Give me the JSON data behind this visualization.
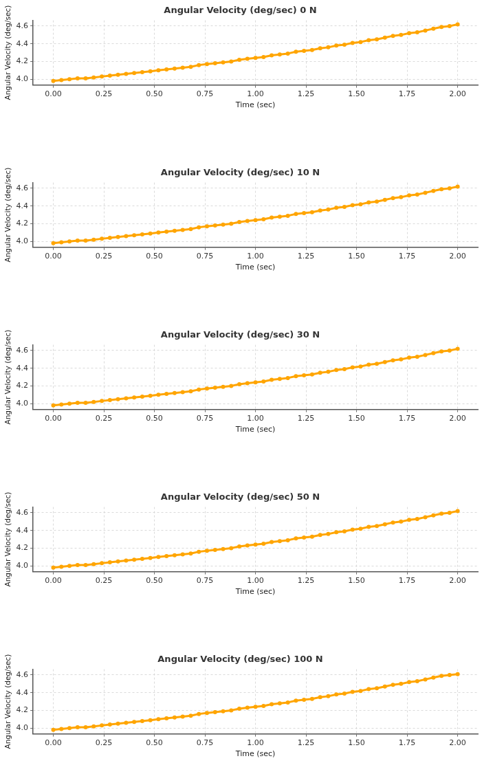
{
  "chart_data": [
    {
      "type": "line",
      "title": "Angular Velocity (deg/sec) 0 N",
      "xlabel": "Time (sec)",
      "ylabel": "Angular Velocity (deg/sec)",
      "x": [
        0,
        0.04,
        0.08,
        0.12,
        0.16,
        0.2,
        0.24,
        0.28,
        0.32,
        0.36,
        0.4,
        0.44,
        0.48,
        0.52,
        0.56,
        0.6,
        0.64,
        0.68,
        0.72,
        0.76,
        0.8,
        0.84,
        0.88,
        0.92,
        0.96,
        1,
        1.04,
        1.08,
        1.12,
        1.16,
        1.2,
        1.24,
        1.28,
        1.32,
        1.36,
        1.4,
        1.44,
        1.48,
        1.52,
        1.56,
        1.6,
        1.64,
        1.68,
        1.72,
        1.76,
        1.8,
        1.84,
        1.88,
        1.92,
        1.96,
        2
      ],
      "series": [
        {
          "color": "#ffa500",
          "values": [
            3.98,
            3.99,
            4.0,
            4.01,
            4.01,
            4.02,
            4.03,
            4.04,
            4.05,
            4.06,
            4.07,
            4.08,
            4.09,
            4.1,
            4.11,
            4.12,
            4.13,
            4.14,
            4.16,
            4.17,
            4.18,
            4.19,
            4.2,
            4.22,
            4.23,
            4.24,
            4.25,
            4.27,
            4.28,
            4.29,
            4.31,
            4.32,
            4.33,
            4.35,
            4.36,
            4.38,
            4.39,
            4.41,
            4.42,
            4.44,
            4.45,
            4.47,
            4.49,
            4.5,
            4.52,
            4.53,
            4.55,
            4.57,
            4.59,
            4.6,
            4.62
          ]
        }
      ],
      "xlim": [
        -0.1,
        2.1
      ],
      "xticks": [
        {
          "value": 0,
          "label": "0.00"
        },
        {
          "value": 0.25,
          "label": "0.25"
        },
        {
          "value": 0.5,
          "label": "0.50"
        },
        {
          "value": 0.75,
          "label": "0.75"
        },
        {
          "value": 1,
          "label": "1.00"
        },
        {
          "value": 1.25,
          "label": "1.25"
        },
        {
          "value": 1.5,
          "label": "1.50"
        },
        {
          "value": 1.75,
          "label": "1.75"
        },
        {
          "value": 2,
          "label": "2.00"
        }
      ],
      "ylim": [
        3.935,
        4.665
      ],
      "yticks": [
        {
          "value": 4,
          "label": "4.0"
        },
        {
          "value": 4.2,
          "label": "4.2"
        },
        {
          "value": 4.4,
          "label": "4.4"
        },
        {
          "value": 4.6,
          "label": "4.6"
        }
      ],
      "grid": true,
      "marker": "circle",
      "line_style": "solid"
    },
    {
      "type": "line",
      "title": "Angular Velocity (deg/sec) 10 N",
      "xlabel": "Time (sec)",
      "ylabel": "Angular Velocity (deg/sec)",
      "x": [
        0,
        0.04,
        0.08,
        0.12,
        0.16,
        0.2,
        0.24,
        0.28,
        0.32,
        0.36,
        0.4,
        0.44,
        0.48,
        0.52,
        0.56,
        0.6,
        0.64,
        0.68,
        0.72,
        0.76,
        0.8,
        0.84,
        0.88,
        0.92,
        0.96,
        1,
        1.04,
        1.08,
        1.12,
        1.16,
        1.2,
        1.24,
        1.28,
        1.32,
        1.36,
        1.4,
        1.44,
        1.48,
        1.52,
        1.56,
        1.6,
        1.64,
        1.68,
        1.72,
        1.76,
        1.8,
        1.84,
        1.88,
        1.92,
        1.96,
        2
      ],
      "series": [
        {
          "color": "#ffa500",
          "values": [
            3.98,
            3.99,
            4.0,
            4.01,
            4.01,
            4.02,
            4.03,
            4.04,
            4.05,
            4.06,
            4.07,
            4.08,
            4.09,
            4.1,
            4.11,
            4.12,
            4.13,
            4.14,
            4.16,
            4.17,
            4.18,
            4.19,
            4.2,
            4.22,
            4.23,
            4.24,
            4.25,
            4.27,
            4.28,
            4.29,
            4.31,
            4.32,
            4.33,
            4.35,
            4.36,
            4.38,
            4.39,
            4.41,
            4.42,
            4.44,
            4.45,
            4.47,
            4.49,
            4.5,
            4.52,
            4.53,
            4.55,
            4.57,
            4.59,
            4.6,
            4.62
          ]
        }
      ],
      "xlim": [
        -0.1,
        2.1
      ],
      "xticks": [
        {
          "value": 0,
          "label": "0.00"
        },
        {
          "value": 0.25,
          "label": "0.25"
        },
        {
          "value": 0.5,
          "label": "0.50"
        },
        {
          "value": 0.75,
          "label": "0.75"
        },
        {
          "value": 1,
          "label": "1.00"
        },
        {
          "value": 1.25,
          "label": "1.25"
        },
        {
          "value": 1.5,
          "label": "1.50"
        },
        {
          "value": 1.75,
          "label": "1.75"
        },
        {
          "value": 2,
          "label": "2.00"
        }
      ],
      "ylim": [
        3.935,
        4.665
      ],
      "yticks": [
        {
          "value": 4,
          "label": "4.0"
        },
        {
          "value": 4.2,
          "label": "4.2"
        },
        {
          "value": 4.4,
          "label": "4.4"
        },
        {
          "value": 4.6,
          "label": "4.6"
        }
      ],
      "grid": true,
      "marker": "circle",
      "line_style": "solid"
    },
    {
      "type": "line",
      "title": "Angular Velocity (deg/sec) 30 N",
      "xlabel": "Time (sec)",
      "ylabel": "Angular Velocity (deg/sec)",
      "x": [
        0,
        0.04,
        0.08,
        0.12,
        0.16,
        0.2,
        0.24,
        0.28,
        0.32,
        0.36,
        0.4,
        0.44,
        0.48,
        0.52,
        0.56,
        0.6,
        0.64,
        0.68,
        0.72,
        0.76,
        0.8,
        0.84,
        0.88,
        0.92,
        0.96,
        1,
        1.04,
        1.08,
        1.12,
        1.16,
        1.2,
        1.24,
        1.28,
        1.32,
        1.36,
        1.4,
        1.44,
        1.48,
        1.52,
        1.56,
        1.6,
        1.64,
        1.68,
        1.72,
        1.76,
        1.8,
        1.84,
        1.88,
        1.92,
        1.96,
        2
      ],
      "series": [
        {
          "color": "#ffa500",
          "values": [
            3.98,
            3.99,
            4.0,
            4.01,
            4.01,
            4.02,
            4.03,
            4.04,
            4.05,
            4.06,
            4.07,
            4.08,
            4.09,
            4.1,
            4.11,
            4.12,
            4.13,
            4.14,
            4.16,
            4.17,
            4.18,
            4.19,
            4.2,
            4.22,
            4.23,
            4.24,
            4.25,
            4.27,
            4.28,
            4.29,
            4.31,
            4.32,
            4.33,
            4.35,
            4.36,
            4.38,
            4.39,
            4.41,
            4.42,
            4.44,
            4.45,
            4.47,
            4.49,
            4.5,
            4.52,
            4.53,
            4.55,
            4.57,
            4.59,
            4.6,
            4.62
          ]
        }
      ],
      "xlim": [
        -0.1,
        2.1
      ],
      "xticks": [
        {
          "value": 0,
          "label": "0.00"
        },
        {
          "value": 0.25,
          "label": "0.25"
        },
        {
          "value": 0.5,
          "label": "0.50"
        },
        {
          "value": 0.75,
          "label": "0.75"
        },
        {
          "value": 1,
          "label": "1.00"
        },
        {
          "value": 1.25,
          "label": "1.25"
        },
        {
          "value": 1.5,
          "label": "1.50"
        },
        {
          "value": 1.75,
          "label": "1.75"
        },
        {
          "value": 2,
          "label": "2.00"
        }
      ],
      "ylim": [
        3.935,
        4.665
      ],
      "yticks": [
        {
          "value": 4,
          "label": "4.0"
        },
        {
          "value": 4.2,
          "label": "4.2"
        },
        {
          "value": 4.4,
          "label": "4.4"
        },
        {
          "value": 4.6,
          "label": "4.6"
        }
      ],
      "grid": true,
      "marker": "circle",
      "line_style": "solid"
    },
    {
      "type": "line",
      "title": "Angular Velocity (deg/sec) 50 N",
      "xlabel": "Time (sec)",
      "ylabel": "Angular Velocity (deg/sec)",
      "x": [
        0,
        0.04,
        0.08,
        0.12,
        0.16,
        0.2,
        0.24,
        0.28,
        0.32,
        0.36,
        0.4,
        0.44,
        0.48,
        0.52,
        0.56,
        0.6,
        0.64,
        0.68,
        0.72,
        0.76,
        0.8,
        0.84,
        0.88,
        0.92,
        0.96,
        1,
        1.04,
        1.08,
        1.12,
        1.16,
        1.2,
        1.24,
        1.28,
        1.32,
        1.36,
        1.4,
        1.44,
        1.48,
        1.52,
        1.56,
        1.6,
        1.64,
        1.68,
        1.72,
        1.76,
        1.8,
        1.84,
        1.88,
        1.92,
        1.96,
        2
      ],
      "series": [
        {
          "color": "#ffa500",
          "values": [
            3.98,
            3.99,
            4.0,
            4.01,
            4.01,
            4.02,
            4.03,
            4.04,
            4.05,
            4.06,
            4.07,
            4.08,
            4.09,
            4.1,
            4.11,
            4.12,
            4.13,
            4.14,
            4.16,
            4.17,
            4.18,
            4.19,
            4.2,
            4.22,
            4.23,
            4.24,
            4.25,
            4.27,
            4.28,
            4.29,
            4.31,
            4.32,
            4.33,
            4.35,
            4.36,
            4.38,
            4.39,
            4.41,
            4.42,
            4.44,
            4.45,
            4.47,
            4.49,
            4.5,
            4.52,
            4.53,
            4.55,
            4.57,
            4.59,
            4.6,
            4.62
          ]
        }
      ],
      "xlim": [
        -0.1,
        2.1
      ],
      "xticks": [
        {
          "value": 0,
          "label": "0.00"
        },
        {
          "value": 0.25,
          "label": "0.25"
        },
        {
          "value": 0.5,
          "label": "0.50"
        },
        {
          "value": 0.75,
          "label": "0.75"
        },
        {
          "value": 1,
          "label": "1.00"
        },
        {
          "value": 1.25,
          "label": "1.25"
        },
        {
          "value": 1.5,
          "label": "1.50"
        },
        {
          "value": 1.75,
          "label": "1.75"
        },
        {
          "value": 2,
          "label": "2.00"
        }
      ],
      "ylim": [
        3.935,
        4.665
      ],
      "yticks": [
        {
          "value": 4,
          "label": "4.0"
        },
        {
          "value": 4.2,
          "label": "4.2"
        },
        {
          "value": 4.4,
          "label": "4.4"
        },
        {
          "value": 4.6,
          "label": "4.6"
        }
      ],
      "grid": true,
      "marker": "circle",
      "line_style": "solid"
    },
    {
      "type": "line",
      "title": "Angular Velocity (deg/sec) 100 N",
      "xlabel": "Time (sec)",
      "ylabel": "Angular Velocity (deg/sec)",
      "x": [
        0,
        0.04,
        0.08,
        0.12,
        0.16,
        0.2,
        0.24,
        0.28,
        0.32,
        0.36,
        0.4,
        0.44,
        0.48,
        0.52,
        0.56,
        0.6,
        0.64,
        0.68,
        0.72,
        0.76,
        0.8,
        0.84,
        0.88,
        0.92,
        0.96,
        1,
        1.04,
        1.08,
        1.12,
        1.16,
        1.2,
        1.24,
        1.28,
        1.32,
        1.36,
        1.4,
        1.44,
        1.48,
        1.52,
        1.56,
        1.6,
        1.64,
        1.68,
        1.72,
        1.76,
        1.8,
        1.84,
        1.88,
        1.92,
        1.96,
        2
      ],
      "series": [
        {
          "color": "#ffa500",
          "values": [
            3.98,
            3.99,
            4.0,
            4.01,
            4.01,
            4.02,
            4.03,
            4.04,
            4.05,
            4.06,
            4.07,
            4.08,
            4.09,
            4.1,
            4.11,
            4.12,
            4.13,
            4.14,
            4.16,
            4.17,
            4.18,
            4.19,
            4.2,
            4.22,
            4.23,
            4.24,
            4.25,
            4.27,
            4.28,
            4.29,
            4.31,
            4.32,
            4.33,
            4.35,
            4.36,
            4.38,
            4.39,
            4.41,
            4.42,
            4.44,
            4.45,
            4.47,
            4.49,
            4.5,
            4.52,
            4.53,
            4.55,
            4.57,
            4.59,
            4.6,
            4.61
          ]
        }
      ],
      "xlim": [
        -0.1,
        2.1
      ],
      "xticks": [
        {
          "value": 0,
          "label": "0.00"
        },
        {
          "value": 0.25,
          "label": "0.25"
        },
        {
          "value": 0.5,
          "label": "0.50"
        },
        {
          "value": 0.75,
          "label": "0.75"
        },
        {
          "value": 1,
          "label": "1.00"
        },
        {
          "value": 1.25,
          "label": "1.25"
        },
        {
          "value": 1.5,
          "label": "1.50"
        },
        {
          "value": 1.75,
          "label": "1.75"
        },
        {
          "value": 2,
          "label": "2.00"
        }
      ],
      "ylim": [
        3.935,
        4.665
      ],
      "yticks": [
        {
          "value": 4,
          "label": "4.0"
        },
        {
          "value": 4.2,
          "label": "4.2"
        },
        {
          "value": 4.4,
          "label": "4.4"
        },
        {
          "value": 4.6,
          "label": "4.6"
        }
      ],
      "grid": true,
      "marker": "circle",
      "line_style": "solid"
    }
  ]
}
